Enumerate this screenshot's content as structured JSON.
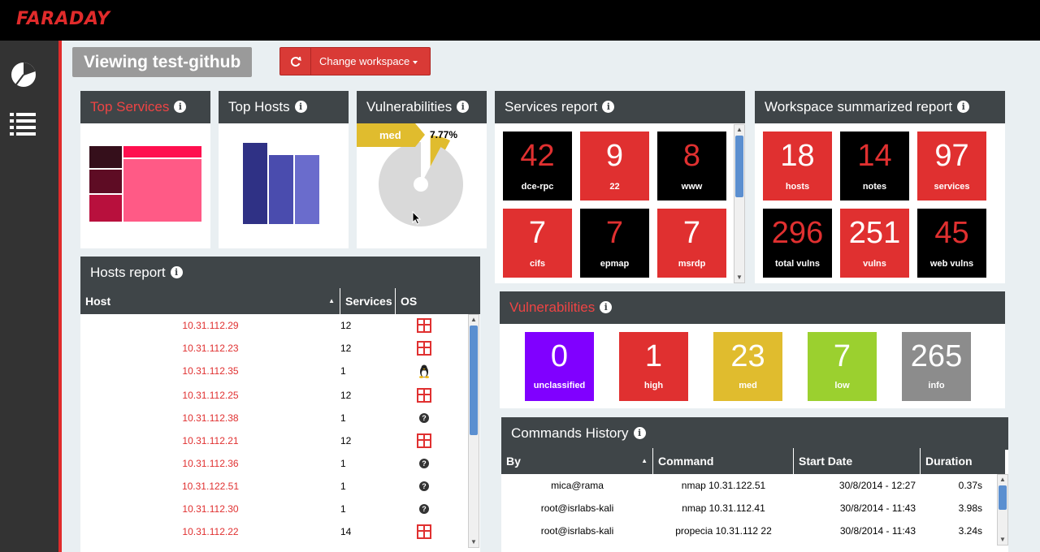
{
  "app": {
    "logo": "FARADAY"
  },
  "sidebar": {
    "items": [
      {
        "icon": "pie-chart-icon"
      },
      {
        "icon": "list-icon"
      }
    ]
  },
  "header": {
    "title": "Viewing test-github",
    "change_workspace_label": "Change workspace"
  },
  "top_services": {
    "title": "Top Services"
  },
  "top_hosts": {
    "title": "Top Hosts",
    "chart_data": {
      "type": "bar",
      "values": [
        100,
        85,
        85
      ],
      "colors": [
        "#2f3185",
        "#4a4cae",
        "#6a6ccc"
      ]
    }
  },
  "vuln_pie": {
    "title": "Vulnerabilities",
    "slice_label": "med",
    "slice_percent": "7.77%",
    "chart_data": {
      "type": "pie",
      "slices": [
        {
          "name": "med",
          "value": 7.77,
          "color": "#e0bc2e"
        },
        {
          "name": "rest",
          "value": 92.23,
          "color": "#d9d9d9"
        }
      ]
    }
  },
  "services_report": {
    "title": "Services report",
    "tiles": [
      {
        "count": "42",
        "name": "dce-rpc",
        "style": "black"
      },
      {
        "count": "9",
        "name": "22",
        "style": "red"
      },
      {
        "count": "8",
        "name": "www",
        "style": "black"
      },
      {
        "count": "7",
        "name": "cifs",
        "style": "red"
      },
      {
        "count": "7",
        "name": "epmap",
        "style": "black"
      },
      {
        "count": "7",
        "name": "msrdp",
        "style": "red"
      }
    ]
  },
  "summary": {
    "title": "Workspace summarized report",
    "tiles": [
      {
        "count": "18",
        "name": "hosts",
        "style": "red"
      },
      {
        "count": "14",
        "name": "notes",
        "style": "black"
      },
      {
        "count": "97",
        "name": "services",
        "style": "red"
      },
      {
        "count": "296",
        "name": "total vulns",
        "style": "black"
      },
      {
        "count": "251",
        "name": "vulns",
        "style": "red"
      },
      {
        "count": "45",
        "name": "web vulns",
        "style": "black"
      }
    ]
  },
  "hosts_report": {
    "title": "Hosts report",
    "columns": [
      "Host",
      "Services",
      "OS"
    ],
    "rows": [
      {
        "host": "10.31.112.29",
        "services": "12",
        "os": "windows-icon"
      },
      {
        "host": "10.31.112.23",
        "services": "12",
        "os": "windows-icon"
      },
      {
        "host": "10.31.112.35",
        "services": "1",
        "os": "linux-icon"
      },
      {
        "host": "10.31.112.25",
        "services": "12",
        "os": "windows-icon"
      },
      {
        "host": "10.31.112.38",
        "services": "1",
        "os": "unknown-os-icon"
      },
      {
        "host": "10.31.112.21",
        "services": "12",
        "os": "windows-icon"
      },
      {
        "host": "10.31.112.36",
        "services": "1",
        "os": "unknown-os-icon"
      },
      {
        "host": "10.31.122.51",
        "services": "1",
        "os": "unknown-os-icon"
      },
      {
        "host": "10.31.112.30",
        "services": "1",
        "os": "unknown-os-icon"
      },
      {
        "host": "10.31.112.22",
        "services": "14",
        "os": "windows-icon"
      }
    ]
  },
  "vulnerabilities": {
    "title": "Vulnerabilities",
    "tiles": [
      {
        "count": "0",
        "name": "unclassified",
        "color": "#8000ff"
      },
      {
        "count": "1",
        "name": "high",
        "color": "#e03030"
      },
      {
        "count": "23",
        "name": "med",
        "color": "#e0bc2e"
      },
      {
        "count": "7",
        "name": "low",
        "color": "#9bd02f"
      },
      {
        "count": "265",
        "name": "info",
        "color": "#8c8c8c"
      }
    ]
  },
  "commands": {
    "title": "Commands History",
    "columns": [
      "By",
      "Command",
      "Start Date",
      "Duration"
    ],
    "rows": [
      {
        "by": "mica@rama",
        "command": "nmap 10.31.122.51",
        "start": "30/8/2014 - 12:27",
        "duration": "0.37s"
      },
      {
        "by": "root@isrlabs-kali",
        "command": "nmap 10.31.112.41",
        "start": "30/8/2014 - 11:43",
        "duration": "3.98s"
      },
      {
        "by": "root@isrlabs-kali",
        "command": "propecia 10.31.112 22",
        "start": "30/8/2014 - 11:43",
        "duration": "3.24s"
      }
    ]
  }
}
